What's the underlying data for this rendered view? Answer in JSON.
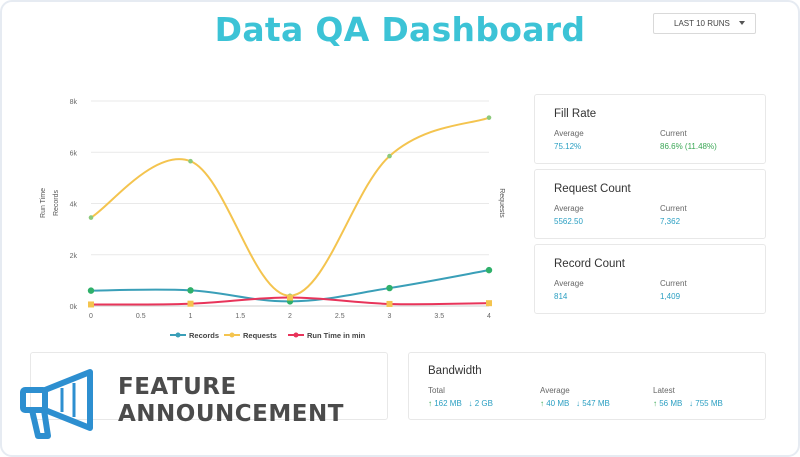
{
  "title": "Data QA Dashboard",
  "dropdown": {
    "selected": "LAST 10 RUNS"
  },
  "chart_data": {
    "type": "line",
    "x": [
      0,
      1,
      2,
      3,
      4
    ],
    "xticks": [
      "0",
      "0.5",
      "1",
      "1.5",
      "2",
      "2.5",
      "3",
      "3.5",
      "4"
    ],
    "yticks": [
      "0k",
      "2k",
      "4k",
      "6k",
      "8k"
    ],
    "ylim": [
      0,
      8000
    ],
    "xlim": [
      0,
      4
    ],
    "ylabel_left": [
      "Run Time",
      "Records"
    ],
    "ylabel_right": "Requests",
    "grid": true,
    "legend_position": "bottom",
    "series": [
      {
        "name": "Records",
        "color": "#3a9fb8",
        "values": [
          600,
          610,
          180,
          700,
          1400
        ]
      },
      {
        "name": "Requests",
        "color": "#f4c44f",
        "values": [
          3450,
          5650,
          400,
          5850,
          7350
        ]
      },
      {
        "name": "Run Time in min",
        "color": "#e8345a",
        "values": [
          60,
          90,
          330,
          80,
          110
        ]
      }
    ]
  },
  "fill_rate": {
    "title": "Fill Rate",
    "avg_label": "Average",
    "avg": "75.12%",
    "cur_label": "Current",
    "cur": "86.6% (11.48%)"
  },
  "request_count": {
    "title": "Request Count",
    "avg_label": "Average",
    "avg": "5562.50",
    "cur_label": "Current",
    "cur": "7,362"
  },
  "record_count": {
    "title": "Record Count",
    "avg_label": "Average",
    "avg": "814",
    "cur_label": "Current",
    "cur": "1,409"
  },
  "bandwidth": {
    "title": "Bandwidth",
    "total_label": "Total",
    "total_up": "162 MB",
    "total_down": "2 GB",
    "average_label": "Average",
    "average_up": "40 MB",
    "average_down": "547 MB",
    "latest_label": "Latest",
    "latest_up": "56 MB",
    "latest_down": "755 MB"
  },
  "feature": {
    "line1": "FEATURE",
    "line2": "ANNOUNCEMENT"
  },
  "icons": {
    "dropdown": "caret-down-icon",
    "feature": "megaphone-icon",
    "up": "arrow-up-icon",
    "down": "arrow-down-icon"
  },
  "colors": {
    "accent": "#3cc3d6",
    "link": "#2b9fc2",
    "green": "#3aa755"
  }
}
